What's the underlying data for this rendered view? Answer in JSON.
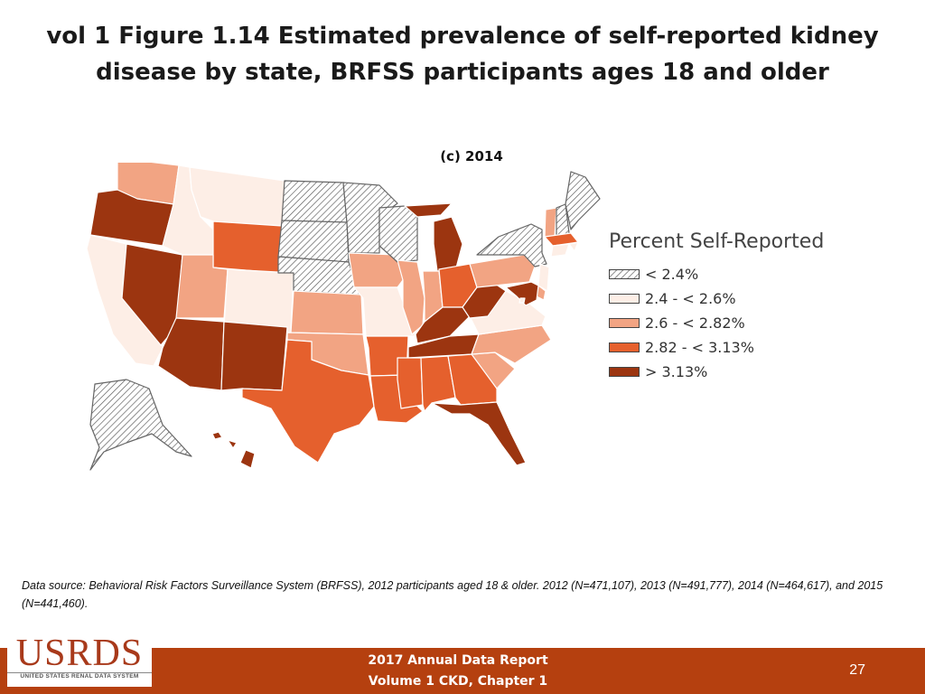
{
  "header": {
    "title": "vol 1 Figure 1.14 Estimated prevalence of self-reported kidney disease by state, BRFSS participants ages 18 and older",
    "subtitle": "(c) 2014"
  },
  "legend": {
    "title": "Percent Self-Reported",
    "items": [
      {
        "label": "< 2.4%",
        "color": "hatch"
      },
      {
        "label": "2.4 - < 2.6%",
        "color": "#fdeee6"
      },
      {
        "label": "2.6 - < 2.82%",
        "color": "#f2a483"
      },
      {
        "label": "2.82 - < 3.13%",
        "color": "#e5602d"
      },
      {
        "label": "> 3.13%",
        "color": "#9c3510"
      }
    ]
  },
  "map_data": {
    "classes": {
      "WA": 2,
      "OR": 4,
      "CA": 1,
      "NV": 4,
      "ID": 1,
      "MT": 1,
      "WY": 3,
      "UT": 2,
      "CO": 1,
      "AZ": 4,
      "NM": 4,
      "ND": 0,
      "SD": 0,
      "NE": 0,
      "KS": 2,
      "OK": 2,
      "TX": 3,
      "MN": 0,
      "IA": 2,
      "MO": 1,
      "AR": 3,
      "LA": 3,
      "WI": 0,
      "IL": 2,
      "MI": 4,
      "IN": 2,
      "OH": 3,
      "KY": 4,
      "TN": 4,
      "MS": 3,
      "AL": 3,
      "GA": 3,
      "FL": 4,
      "SC": 2,
      "NC": 2,
      "VA": 1,
      "WV": 4,
      "PA": 2,
      "NY": 0,
      "VT": 2,
      "NH": 0,
      "ME": 0,
      "MA": 3,
      "RI": 1,
      "CT": 1,
      "NJ": 1,
      "DE": 2,
      "MD": 4,
      "DC": 1,
      "AK": 0,
      "HI": 4
    }
  },
  "footnote": {
    "source": "Data source: Behavioral Risk Factors Surveillance System (BRFSS), 2012 participants aged 18 & older. 2012 (N=471,107), 2013 (N=491,777), 2014 (N=464,617), and 2015 (N=441,460)."
  },
  "footer": {
    "line1": "2017 Annual Data Report",
    "line2": "Volume 1 CKD, Chapter 1",
    "page": "27"
  },
  "logo": {
    "text": "USRDS",
    "subtext": "UNITED STATES RENAL DATA SYSTEM"
  }
}
